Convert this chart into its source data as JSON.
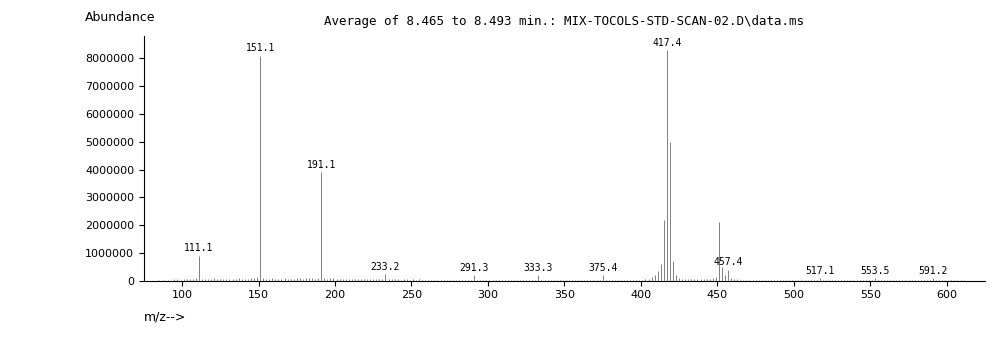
{
  "title": "Average of 8.465 to 8.493 min.: MIX-TOCOLS-STD-SCAN-02.D\\data.ms",
  "xlabel": "m/z-->",
  "ylabel": "Abundance",
  "xlim": [
    75,
    625
  ],
  "ylim": [
    0,
    8800000
  ],
  "yticks": [
    0,
    1000000,
    2000000,
    3000000,
    4000000,
    5000000,
    6000000,
    7000000,
    8000000
  ],
  "xticks": [
    100,
    150,
    200,
    250,
    300,
    350,
    400,
    450,
    500,
    550,
    600
  ],
  "title_fontsize": 9,
  "label_fontsize": 9,
  "tick_fontsize": 8,
  "background_color": "#ffffff",
  "line_color": "#808080",
  "labeled_peaks": {
    "111.1": 900000,
    "151.1": 8100000,
    "191.1": 3900000,
    "233.2": 250000,
    "291.3": 200000,
    "333.3": 200000,
    "375.4": 200000,
    "417.4": 8300000,
    "457.4": 400000,
    "517.1": 100000,
    "553.5": 100000,
    "591.2": 100000
  },
  "all_peaks": [
    [
      85,
      30000
    ],
    [
      88,
      20000
    ],
    [
      91,
      40000
    ],
    [
      95,
      60000
    ],
    [
      97,
      50000
    ],
    [
      99,
      40000
    ],
    [
      101,
      60000
    ],
    [
      103,
      50000
    ],
    [
      105,
      60000
    ],
    [
      107,
      80000
    ],
    [
      109,
      100000
    ],
    [
      111,
      900000
    ],
    [
      113,
      80000
    ],
    [
      115,
      50000
    ],
    [
      117,
      60000
    ],
    [
      119,
      70000
    ],
    [
      121,
      100000
    ],
    [
      123,
      80000
    ],
    [
      125,
      60000
    ],
    [
      127,
      50000
    ],
    [
      129,
      60000
    ],
    [
      131,
      70000
    ],
    [
      133,
      60000
    ],
    [
      135,
      80000
    ],
    [
      137,
      100000
    ],
    [
      139,
      80000
    ],
    [
      141,
      70000
    ],
    [
      143,
      80000
    ],
    [
      145,
      90000
    ],
    [
      147,
      110000
    ],
    [
      149,
      120000
    ],
    [
      151,
      8100000
    ],
    [
      153,
      90000
    ],
    [
      155,
      70000
    ],
    [
      157,
      80000
    ],
    [
      159,
      90000
    ],
    [
      161,
      80000
    ],
    [
      163,
      70000
    ],
    [
      165,
      80000
    ],
    [
      167,
      90000
    ],
    [
      169,
      80000
    ],
    [
      171,
      70000
    ],
    [
      173,
      80000
    ],
    [
      175,
      100000
    ],
    [
      177,
      90000
    ],
    [
      179,
      80000
    ],
    [
      181,
      90000
    ],
    [
      183,
      100000
    ],
    [
      185,
      90000
    ],
    [
      187,
      80000
    ],
    [
      189,
      100000
    ],
    [
      191,
      3900000
    ],
    [
      193,
      90000
    ],
    [
      195,
      80000
    ],
    [
      197,
      90000
    ],
    [
      199,
      100000
    ],
    [
      201,
      70000
    ],
    [
      203,
      60000
    ],
    [
      205,
      70000
    ],
    [
      207,
      80000
    ],
    [
      209,
      70000
    ],
    [
      211,
      50000
    ],
    [
      213,
      60000
    ],
    [
      215,
      70000
    ],
    [
      217,
      60000
    ],
    [
      219,
      50000
    ],
    [
      221,
      60000
    ],
    [
      223,
      70000
    ],
    [
      225,
      60000
    ],
    [
      227,
      50000
    ],
    [
      229,
      60000
    ],
    [
      231,
      70000
    ],
    [
      233,
      250000
    ],
    [
      235,
      60000
    ],
    [
      237,
      50000
    ],
    [
      239,
      60000
    ],
    [
      241,
      50000
    ],
    [
      243,
      40000
    ],
    [
      245,
      50000
    ],
    [
      247,
      50000
    ],
    [
      249,
      40000
    ],
    [
      251,
      50000
    ],
    [
      253,
      40000
    ],
    [
      255,
      50000
    ],
    [
      257,
      40000
    ],
    [
      259,
      30000
    ],
    [
      261,
      40000
    ],
    [
      263,
      40000
    ],
    [
      265,
      30000
    ],
    [
      267,
      40000
    ],
    [
      269,
      40000
    ],
    [
      271,
      30000
    ],
    [
      273,
      40000
    ],
    [
      275,
      40000
    ],
    [
      277,
      30000
    ],
    [
      279,
      40000
    ],
    [
      281,
      30000
    ],
    [
      283,
      40000
    ],
    [
      285,
      30000
    ],
    [
      287,
      40000
    ],
    [
      289,
      30000
    ],
    [
      291,
      200000
    ],
    [
      293,
      30000
    ],
    [
      295,
      30000
    ],
    [
      297,
      30000
    ],
    [
      299,
      30000
    ],
    [
      301,
      25000
    ],
    [
      303,
      30000
    ],
    [
      305,
      25000
    ],
    [
      307,
      30000
    ],
    [
      309,
      25000
    ],
    [
      311,
      30000
    ],
    [
      313,
      25000
    ],
    [
      315,
      30000
    ],
    [
      317,
      25000
    ],
    [
      319,
      30000
    ],
    [
      321,
      25000
    ],
    [
      323,
      30000
    ],
    [
      325,
      25000
    ],
    [
      327,
      30000
    ],
    [
      329,
      25000
    ],
    [
      331,
      30000
    ],
    [
      333,
      200000
    ],
    [
      335,
      25000
    ],
    [
      337,
      25000
    ],
    [
      339,
      25000
    ],
    [
      341,
      25000
    ],
    [
      343,
      25000
    ],
    [
      345,
      25000
    ],
    [
      347,
      25000
    ],
    [
      349,
      25000
    ],
    [
      351,
      25000
    ],
    [
      353,
      25000
    ],
    [
      355,
      25000
    ],
    [
      357,
      25000
    ],
    [
      359,
      25000
    ],
    [
      361,
      25000
    ],
    [
      363,
      25000
    ],
    [
      365,
      25000
    ],
    [
      367,
      25000
    ],
    [
      369,
      25000
    ],
    [
      371,
      25000
    ],
    [
      373,
      25000
    ],
    [
      375,
      200000
    ],
    [
      377,
      25000
    ],
    [
      379,
      25000
    ],
    [
      381,
      25000
    ],
    [
      383,
      25000
    ],
    [
      385,
      25000
    ],
    [
      387,
      25000
    ],
    [
      389,
      25000
    ],
    [
      391,
      25000
    ],
    [
      393,
      25000
    ],
    [
      395,
      25000
    ],
    [
      397,
      25000
    ],
    [
      399,
      30000
    ],
    [
      401,
      40000
    ],
    [
      403,
      60000
    ],
    [
      405,
      80000
    ],
    [
      407,
      120000
    ],
    [
      409,
      200000
    ],
    [
      411,
      350000
    ],
    [
      413,
      600000
    ],
    [
      415,
      2200000
    ],
    [
      417,
      8300000
    ],
    [
      419,
      5000000
    ],
    [
      421,
      700000
    ],
    [
      423,
      200000
    ],
    [
      425,
      100000
    ],
    [
      427,
      80000
    ],
    [
      429,
      60000
    ],
    [
      431,
      50000
    ],
    [
      433,
      60000
    ],
    [
      435,
      50000
    ],
    [
      437,
      60000
    ],
    [
      439,
      50000
    ],
    [
      441,
      60000
    ],
    [
      443,
      70000
    ],
    [
      445,
      80000
    ],
    [
      447,
      100000
    ],
    [
      449,
      120000
    ],
    [
      451,
      2100000
    ],
    [
      453,
      500000
    ],
    [
      455,
      200000
    ],
    [
      457,
      400000
    ],
    [
      459,
      100000
    ],
    [
      461,
      60000
    ],
    [
      463,
      50000
    ],
    [
      465,
      40000
    ],
    [
      467,
      30000
    ],
    [
      469,
      30000
    ],
    [
      471,
      25000
    ],
    [
      473,
      25000
    ],
    [
      475,
      25000
    ],
    [
      477,
      25000
    ],
    [
      479,
      25000
    ],
    [
      481,
      25000
    ],
    [
      483,
      25000
    ],
    [
      485,
      25000
    ],
    [
      487,
      25000
    ],
    [
      489,
      25000
    ],
    [
      491,
      25000
    ],
    [
      493,
      25000
    ],
    [
      495,
      25000
    ],
    [
      497,
      25000
    ],
    [
      499,
      25000
    ],
    [
      501,
      25000
    ],
    [
      503,
      25000
    ],
    [
      505,
      25000
    ],
    [
      507,
      25000
    ],
    [
      509,
      25000
    ],
    [
      511,
      25000
    ],
    [
      513,
      25000
    ],
    [
      515,
      25000
    ],
    [
      517,
      100000
    ],
    [
      519,
      25000
    ],
    [
      521,
      25000
    ],
    [
      523,
      25000
    ],
    [
      525,
      25000
    ],
    [
      527,
      25000
    ],
    [
      529,
      25000
    ],
    [
      531,
      25000
    ],
    [
      533,
      25000
    ],
    [
      535,
      25000
    ],
    [
      537,
      25000
    ],
    [
      539,
      25000
    ],
    [
      541,
      25000
    ],
    [
      543,
      25000
    ],
    [
      545,
      25000
    ],
    [
      547,
      25000
    ],
    [
      549,
      25000
    ],
    [
      551,
      25000
    ],
    [
      553,
      100000
    ],
    [
      555,
      25000
    ],
    [
      557,
      25000
    ],
    [
      559,
      25000
    ],
    [
      561,
      25000
    ],
    [
      563,
      25000
    ],
    [
      565,
      25000
    ],
    [
      567,
      25000
    ],
    [
      569,
      25000
    ],
    [
      571,
      25000
    ],
    [
      573,
      25000
    ],
    [
      575,
      25000
    ],
    [
      577,
      25000
    ],
    [
      579,
      25000
    ],
    [
      581,
      25000
    ],
    [
      583,
      25000
    ],
    [
      585,
      25000
    ],
    [
      587,
      25000
    ],
    [
      589,
      25000
    ],
    [
      591,
      100000
    ],
    [
      593,
      25000
    ],
    [
      595,
      25000
    ],
    [
      597,
      25000
    ],
    [
      599,
      25000
    ],
    [
      601,
      25000
    ],
    [
      603,
      25000
    ],
    [
      605,
      25000
    ],
    [
      607,
      25000
    ],
    [
      609,
      25000
    ],
    [
      611,
      25000
    ]
  ]
}
